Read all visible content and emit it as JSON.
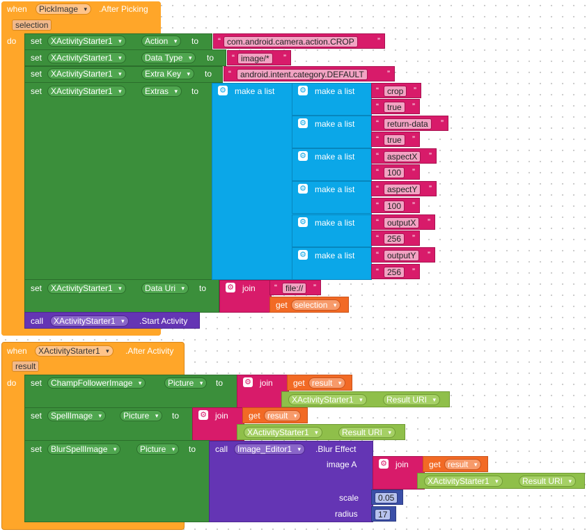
{
  "event1": {
    "when": "when",
    "component": "PickImage",
    "event": ".After Picking",
    "param": "selection",
    "do": "do",
    "set_lines": [
      {
        "set": "set",
        "comp": "XActivityStarter1",
        "prop": "Action",
        "to": "to"
      },
      {
        "set": "set",
        "comp": "XActivityStarter1",
        "prop": "Data Type",
        "to": "to"
      },
      {
        "set": "set",
        "comp": "XActivityStarter1",
        "prop": "Extra Key",
        "to": "to"
      },
      {
        "set": "set",
        "comp": "XActivityStarter1",
        "prop": "Extras",
        "to": "to"
      },
      {
        "set": "set",
        "comp": "XActivityStarter1",
        "prop": "Data Uri",
        "to": "to"
      }
    ],
    "action_value": "com.android.camera.action.CROP",
    "datatype_value": "image/*",
    "extrakey_value": "android.intent.category.DEFAULT",
    "make_a_list": "make a list",
    "extras_pairs": [
      {
        "key": "crop",
        "value": "true"
      },
      {
        "key": "return-data",
        "value": "true"
      },
      {
        "key": "aspectX",
        "value": "100"
      },
      {
        "key": "aspectY",
        "value": "100"
      },
      {
        "key": "outputX",
        "value": "256"
      },
      {
        "key": "outputY",
        "value": "256"
      }
    ],
    "join": "join",
    "file_prefix": "file://",
    "get": "get",
    "get_var": "selection",
    "call": "call",
    "call_comp": "XActivityStarter1",
    "call_method": ".Start Activity"
  },
  "event2": {
    "when": "when",
    "component": "XActivityStarter1",
    "event": ".After Activity",
    "param": "result",
    "do": "do",
    "set_lines": [
      {
        "set": "set",
        "comp": "ChampFollowerImage",
        "prop": "Picture",
        "to": "to"
      },
      {
        "set": "set",
        "comp": "SpellImage",
        "prop": "Picture",
        "to": "to"
      },
      {
        "set": "set",
        "comp": "BlurSpellImage",
        "prop": "Picture",
        "to": "to"
      }
    ],
    "join": "join",
    "get": "get",
    "get_var": "result",
    "uri_comp": "XActivityStarter1",
    "uri_prop": "Result URI",
    "call": "call",
    "call_comp": "Image_Editor1",
    "call_method": ".Blur Effect",
    "image_a": "image A",
    "scale": "scale",
    "scale_value": "0.05",
    "radius": "radius",
    "radius_value": "17"
  },
  "colors": {
    "event": "#ffa629",
    "setter": "#3b8f3b",
    "list": "#0ba7e8",
    "text": "#d81b6a",
    "call": "#6435b4",
    "variable": "#f26a25",
    "number": "#3b4fa8",
    "property": "#8fbf4a"
  }
}
